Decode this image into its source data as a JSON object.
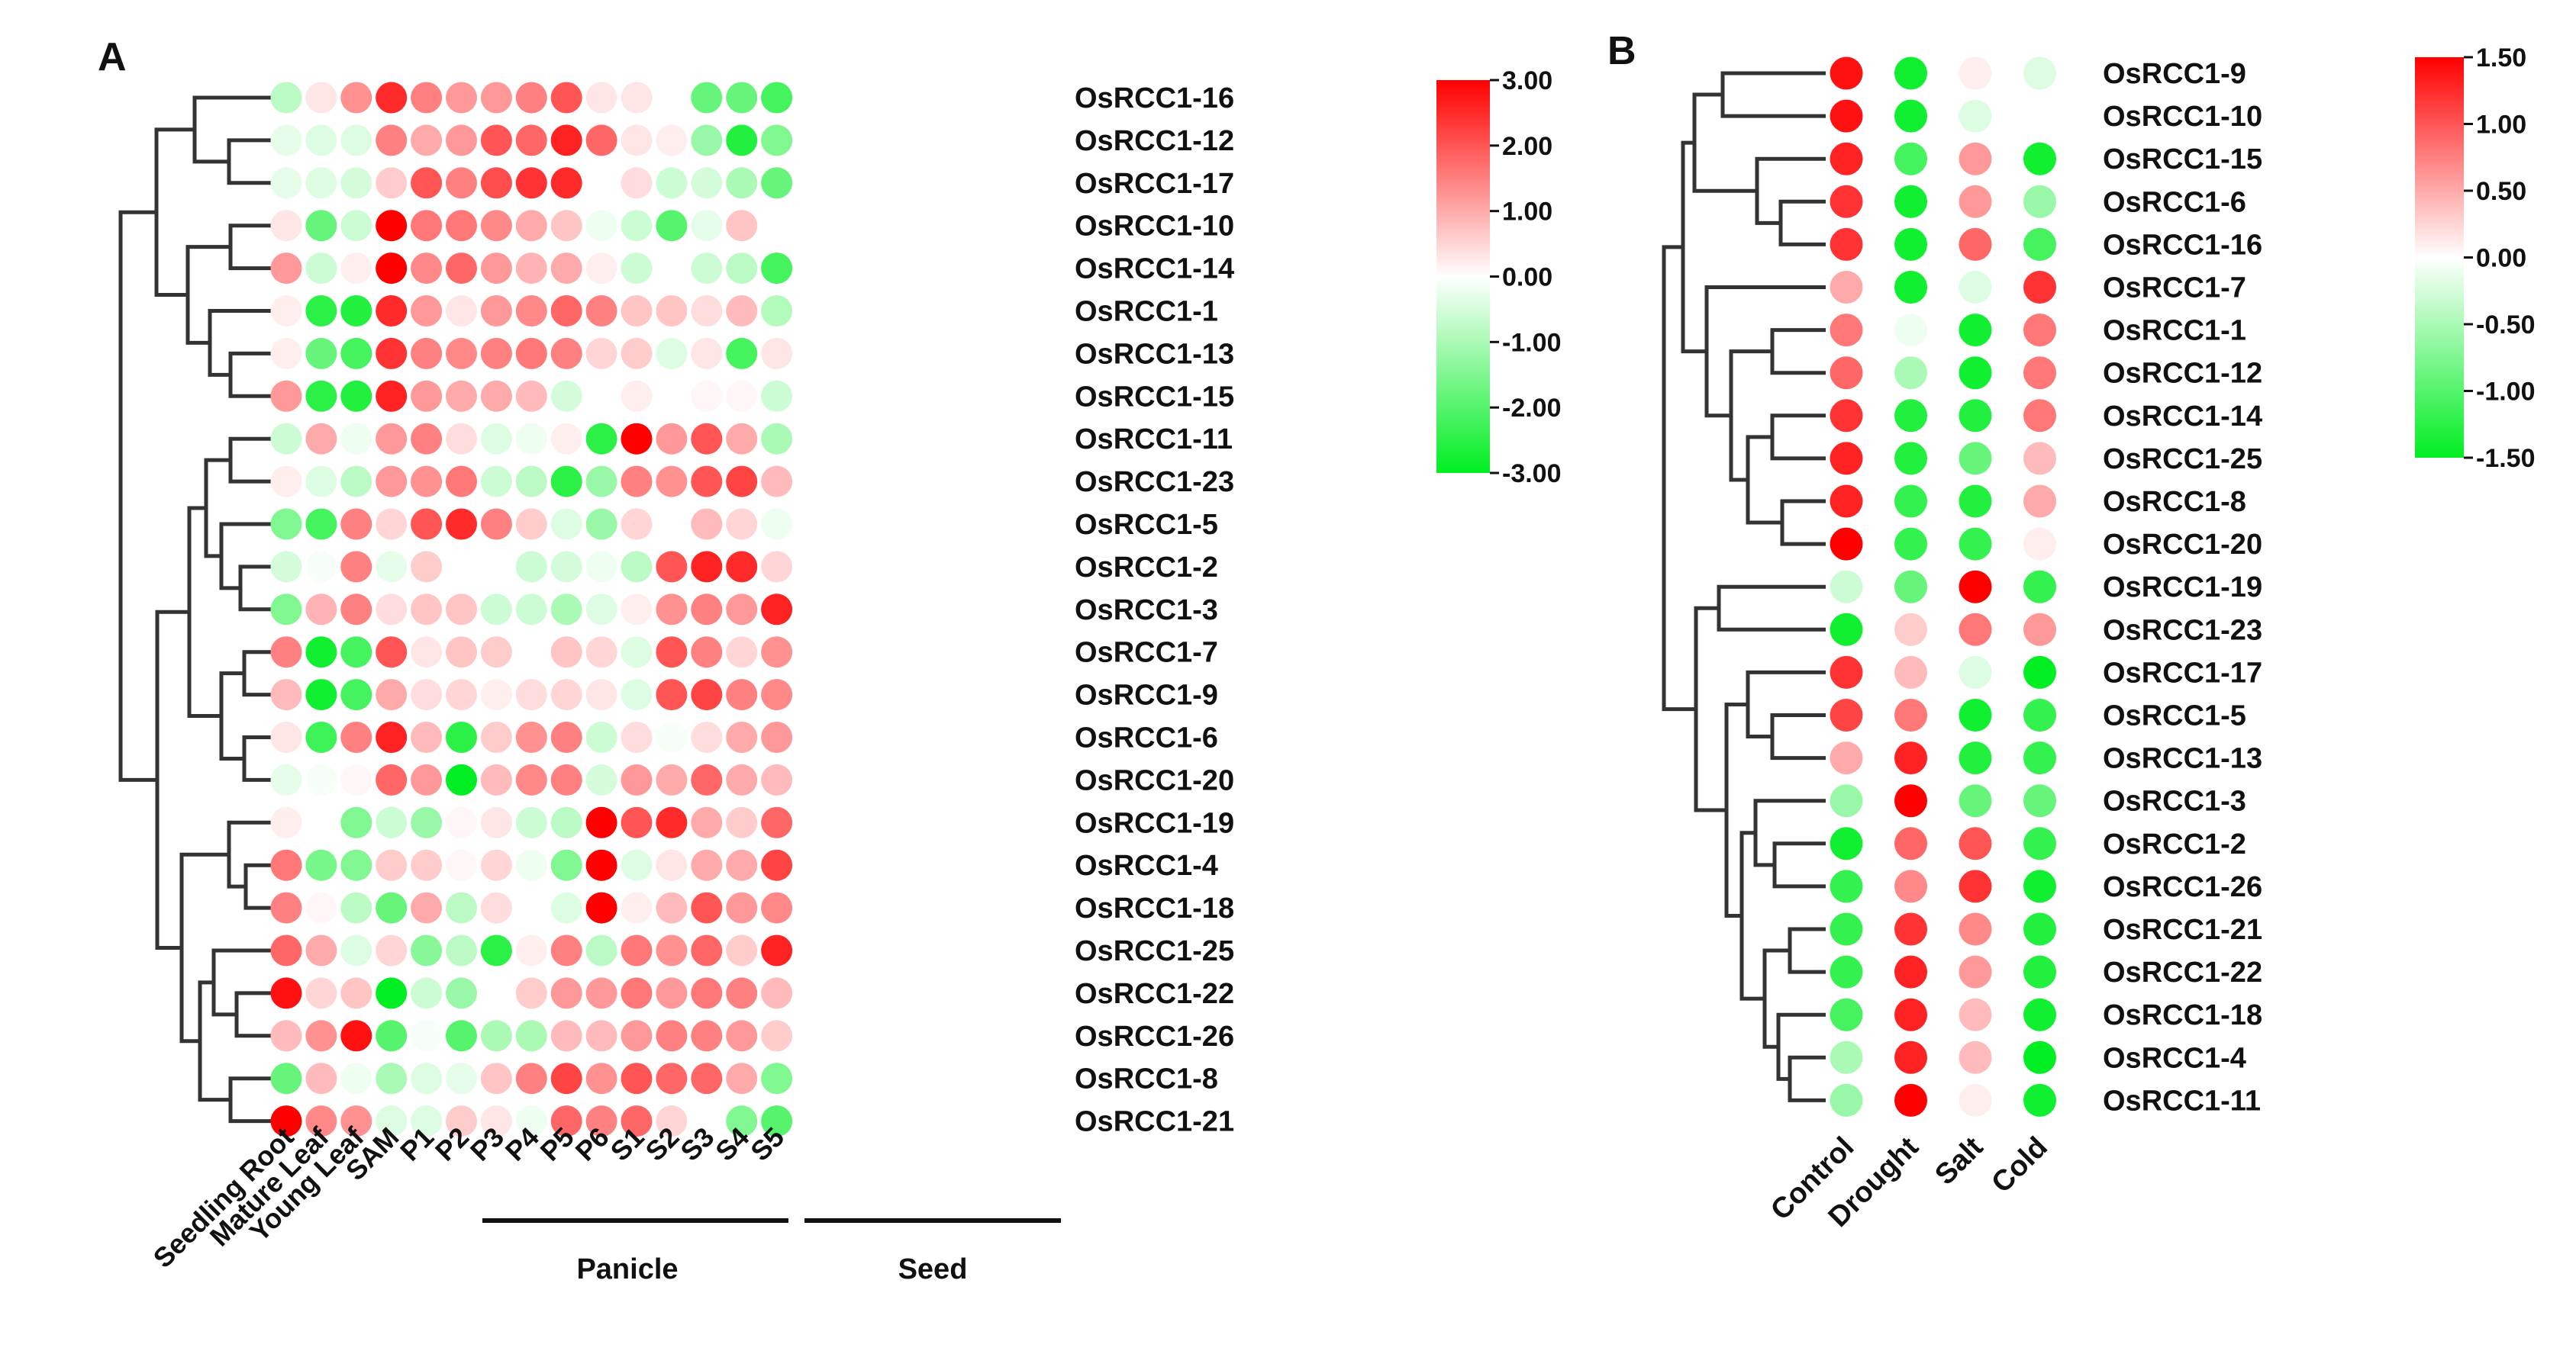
{
  "chart_data": [
    {
      "panel": "A",
      "type": "heatmap",
      "marker": "circle",
      "columns": [
        "Seedling Root",
        "Mature Leaf",
        "Young Leaf",
        "SAM",
        "P1",
        "P2",
        "P3",
        "P4",
        "P5",
        "P6",
        "S1",
        "S2",
        "S3",
        "S4",
        "S5"
      ],
      "rows": [
        "OsRCC1-16",
        "OsRCC1-12",
        "OsRCC1-17",
        "OsRCC1-10",
        "OsRCC1-14",
        "OsRCC1-1",
        "OsRCC1-13",
        "OsRCC1-15",
        "OsRCC1-11",
        "OsRCC1-23",
        "OsRCC1-5",
        "OsRCC1-2",
        "OsRCC1-3",
        "OsRCC1-7",
        "OsRCC1-9",
        "OsRCC1-6",
        "OsRCC1-20",
        "OsRCC1-19",
        "OsRCC1-4",
        "OsRCC1-18",
        "OsRCC1-25",
        "OsRCC1-22",
        "OsRCC1-26",
        "OsRCC1-8",
        "OsRCC1-21"
      ],
      "values": [
        [
          -0.8,
          0.3,
          1.3,
          2.5,
          1.5,
          1.2,
          1.2,
          1.5,
          2.0,
          0.3,
          0.3,
          0.0,
          -1.8,
          -1.8,
          -2.2
        ],
        [
          -0.3,
          -0.4,
          -0.4,
          1.5,
          1.0,
          1.2,
          2.0,
          1.8,
          2.6,
          1.8,
          0.3,
          0.2,
          -1.2,
          -2.6,
          -1.5
        ],
        [
          -0.3,
          -0.4,
          -0.5,
          0.6,
          2.0,
          1.5,
          2.1,
          2.4,
          2.5,
          0.0,
          0.4,
          -0.6,
          -0.5,
          -1.0,
          -1.8
        ],
        [
          0.3,
          -1.8,
          -0.6,
          3.0,
          1.6,
          1.6,
          1.4,
          1.0,
          0.7,
          -0.2,
          -0.6,
          -2.0,
          -0.3,
          0.7,
          0.0
        ],
        [
          1.2,
          -0.6,
          0.2,
          3.0,
          1.4,
          1.8,
          1.2,
          0.9,
          1.0,
          0.2,
          -0.6,
          0.0,
          -0.6,
          -0.8,
          -2.2
        ],
        [
          0.2,
          -2.5,
          -2.6,
          2.5,
          1.2,
          0.3,
          1.2,
          1.4,
          1.8,
          1.5,
          0.7,
          0.7,
          0.4,
          0.8,
          -0.9
        ],
        [
          0.2,
          -1.8,
          -2.2,
          2.4,
          1.5,
          1.4,
          1.5,
          1.6,
          1.5,
          0.5,
          0.6,
          -0.4,
          0.3,
          -2.2,
          0.3
        ],
        [
          1.2,
          -2.5,
          -2.6,
          2.6,
          1.2,
          1.0,
          1.0,
          0.8,
          -0.5,
          0.0,
          0.2,
          0.0,
          0.1,
          0.1,
          -0.6
        ],
        [
          -0.6,
          1.0,
          -0.2,
          1.2,
          1.5,
          0.4,
          -0.4,
          -0.2,
          0.2,
          -2.5,
          3.0,
          1.2,
          2.0,
          1.0,
          -1.0
        ],
        [
          0.2,
          -0.4,
          -0.8,
          1.2,
          1.3,
          1.6,
          -0.6,
          -0.8,
          -2.5,
          -1.2,
          1.5,
          1.3,
          2.0,
          2.2,
          0.8
        ],
        [
          -1.5,
          -2.2,
          1.5,
          0.5,
          2.0,
          2.5,
          1.5,
          0.6,
          -0.4,
          -1.2,
          0.5,
          0.0,
          0.8,
          0.5,
          -0.2
        ],
        [
          -0.5,
          -0.1,
          1.5,
          -0.3,
          0.6,
          0.0,
          0.0,
          -0.6,
          -0.5,
          -0.2,
          -0.8,
          2.0,
          2.6,
          2.5,
          0.5
        ],
        [
          -1.5,
          0.9,
          1.5,
          0.4,
          0.7,
          0.7,
          -0.6,
          -0.6,
          -1.0,
          -0.4,
          0.2,
          1.3,
          1.5,
          1.2,
          2.6
        ],
        [
          1.5,
          -2.8,
          -2.2,
          2.0,
          0.3,
          0.7,
          0.6,
          0.0,
          0.7,
          0.5,
          -0.4,
          2.0,
          1.5,
          0.5,
          1.3
        ],
        [
          0.8,
          -2.8,
          -2.2,
          1.0,
          0.4,
          0.5,
          0.2,
          0.4,
          0.5,
          0.3,
          -0.4,
          2.0,
          2.2,
          1.5,
          1.4
        ],
        [
          0.3,
          -2.3,
          1.5,
          2.6,
          0.8,
          -2.5,
          0.6,
          1.3,
          1.5,
          -0.6,
          0.4,
          -0.1,
          0.4,
          1.0,
          1.2
        ],
        [
          -0.3,
          -0.1,
          0.1,
          1.8,
          1.2,
          -3.0,
          0.8,
          1.4,
          1.5,
          -0.5,
          1.2,
          1.0,
          1.8,
          1.0,
          0.8
        ],
        [
          0.2,
          0.0,
          -1.5,
          -0.6,
          -1.2,
          0.1,
          0.3,
          -0.6,
          -0.8,
          3.0,
          2.0,
          2.5,
          1.0,
          0.6,
          1.8
        ],
        [
          1.6,
          -1.6,
          -1.5,
          0.6,
          0.6,
          0.1,
          0.5,
          -0.2,
          -1.5,
          3.0,
          -0.4,
          0.3,
          1.0,
          1.0,
          2.2
        ],
        [
          1.5,
          0.1,
          -0.8,
          -1.8,
          1.0,
          -0.8,
          0.4,
          0.0,
          -0.4,
          3.0,
          0.2,
          0.8,
          2.0,
          1.2,
          1.4
        ],
        [
          1.8,
          1.0,
          -0.4,
          0.5,
          -1.4,
          -0.8,
          -2.5,
          0.2,
          1.5,
          -0.8,
          1.6,
          1.3,
          1.8,
          0.6,
          2.6
        ],
        [
          2.8,
          0.5,
          0.7,
          -3.0,
          -0.6,
          -1.2,
          0.0,
          0.6,
          1.2,
          1.2,
          1.6,
          1.2,
          1.6,
          1.5,
          0.8
        ],
        [
          0.8,
          1.3,
          2.8,
          -2.0,
          -0.1,
          -2.0,
          -1.0,
          -1.0,
          0.8,
          0.8,
          1.2,
          1.5,
          1.5,
          1.2,
          0.6
        ],
        [
          -1.8,
          0.8,
          -0.2,
          -1.0,
          -0.4,
          -0.3,
          0.7,
          1.5,
          2.2,
          1.3,
          2.0,
          1.8,
          1.8,
          1.0,
          -1.5
        ],
        [
          3.0,
          1.4,
          1.3,
          -0.4,
          -0.4,
          0.6,
          0.3,
          -0.2,
          1.8,
          1.5,
          1.8,
          0.5,
          0.0,
          -1.5,
          -2.0
        ]
      ],
      "color_scale": {
        "min": -3.0,
        "max": 3.0,
        "ticks": [
          "3.00",
          "2.00",
          "1.00",
          "0.00",
          "-1.00",
          "-2.00",
          "-3.00"
        ],
        "colors": [
          "#00ee22",
          "#ffffff",
          "#ff0000"
        ]
      },
      "groups": [
        {
          "label": "Panicle",
          "from": "P1",
          "to": "P6"
        },
        {
          "label": "Seed",
          "from": "S1",
          "to": "S5"
        }
      ],
      "legend": "right"
    },
    {
      "panel": "B",
      "type": "heatmap",
      "marker": "circle",
      "columns": [
        "Control",
        "Drought",
        "Salt",
        "Cold"
      ],
      "rows": [
        "OsRCC1-9",
        "OsRCC1-10",
        "OsRCC1-15",
        "OsRCC1-6",
        "OsRCC1-16",
        "OsRCC1-7",
        "OsRCC1-1",
        "OsRCC1-12",
        "OsRCC1-14",
        "OsRCC1-25",
        "OsRCC1-8",
        "OsRCC1-20",
        "OsRCC1-19",
        "OsRCC1-23",
        "OsRCC1-17",
        "OsRCC1-5",
        "OsRCC1-13",
        "OsRCC1-3",
        "OsRCC1-2",
        "OsRCC1-26",
        "OsRCC1-21",
        "OsRCC1-22",
        "OsRCC1-18",
        "OsRCC1-4",
        "OsRCC1-11"
      ],
      "values": [
        [
          1.4,
          -1.4,
          0.1,
          -0.2
        ],
        [
          1.4,
          -1.4,
          -0.2,
          0.0
        ],
        [
          1.3,
          -1.1,
          0.6,
          -1.4
        ],
        [
          1.2,
          -1.4,
          0.6,
          -0.6
        ],
        [
          1.2,
          -1.4,
          0.9,
          -1.1
        ],
        [
          0.5,
          -1.4,
          -0.2,
          1.2
        ],
        [
          0.8,
          -0.1,
          -1.4,
          0.8
        ],
        [
          0.9,
          -0.5,
          -1.4,
          0.8
        ],
        [
          1.2,
          -1.3,
          -1.3,
          0.8
        ],
        [
          1.3,
          -1.3,
          -0.9,
          0.4
        ],
        [
          1.3,
          -1.2,
          -1.3,
          0.5
        ],
        [
          1.5,
          -1.2,
          -1.2,
          0.1
        ],
        [
          -0.3,
          -0.9,
          1.5,
          -1.2
        ],
        [
          -1.4,
          0.3,
          0.8,
          0.6
        ],
        [
          1.2,
          0.4,
          -0.2,
          -1.5
        ],
        [
          1.1,
          0.8,
          -1.4,
          -1.2
        ],
        [
          0.5,
          1.3,
          -1.3,
          -1.2
        ],
        [
          -0.6,
          1.5,
          -0.9,
          -0.9
        ],
        [
          -1.4,
          0.9,
          1.0,
          -1.2
        ],
        [
          -1.2,
          0.7,
          1.2,
          -1.4
        ],
        [
          -1.2,
          1.2,
          0.7,
          -1.3
        ],
        [
          -1.2,
          1.3,
          0.6,
          -1.3
        ],
        [
          -1.1,
          1.3,
          0.4,
          -1.4
        ],
        [
          -0.5,
          1.3,
          0.4,
          -1.5
        ],
        [
          -0.6,
          1.5,
          0.1,
          -1.4
        ]
      ],
      "color_scale": {
        "min": -1.5,
        "max": 1.5,
        "ticks": [
          "1.50",
          "1.00",
          "0.50",
          "0.00",
          "-0.50",
          "-1.00",
          "-1.50"
        ],
        "colors": [
          "#00ee22",
          "#ffffff",
          "#ff0000"
        ]
      },
      "legend": "right"
    }
  ]
}
